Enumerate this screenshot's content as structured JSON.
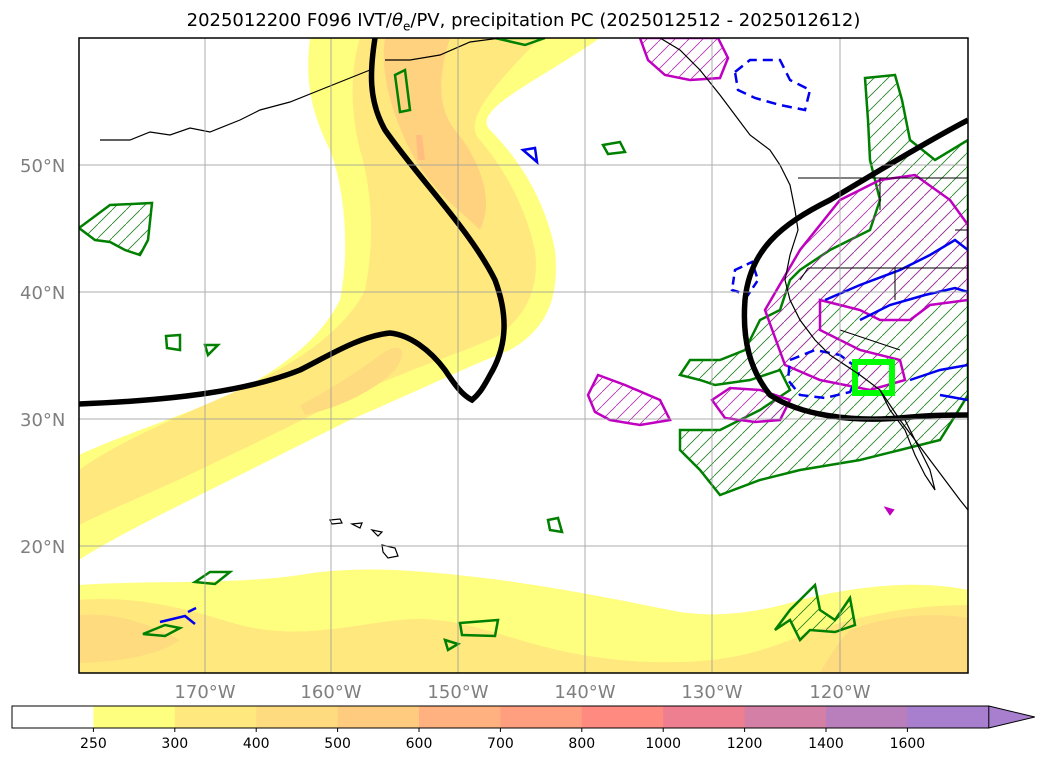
{
  "title": {
    "prefix": "2025012200 F096 IVT/",
    "theta": "θ",
    "sub": "e",
    "suffix": "/PV, precipitation PC (2025012512 - 2025012612)"
  },
  "map": {
    "lat_labels": [
      {
        "lat": 50,
        "text": "50°N"
      },
      {
        "lat": 40,
        "text": "40°N"
      },
      {
        "lat": 30,
        "text": "30°N"
      },
      {
        "lat": 20,
        "text": "20°N"
      }
    ],
    "lon_labels": [
      {
        "lon": -170,
        "text": "170°W"
      },
      {
        "lon": -160,
        "text": "160°W"
      },
      {
        "lon": -150,
        "text": "150°W"
      },
      {
        "lon": -140,
        "text": "140°W"
      },
      {
        "lon": -130,
        "text": "130°W"
      },
      {
        "lon": -120,
        "text": "120°W"
      }
    ]
  },
  "colorbar": {
    "labels": [
      "250",
      "300",
      "400",
      "500",
      "600",
      "700",
      "800",
      "1000",
      "1200",
      "1400",
      "1600"
    ],
    "colors": [
      "#ffffff",
      "#ffff7f",
      "#ffe97f",
      "#ffdb7f",
      "#ffcc7f",
      "#ffb27f",
      "#ff9f7f",
      "#ff8a7f",
      "#ee7f90",
      "#d37fa6",
      "#b87fbc",
      "#a77fce"
    ]
  }
}
